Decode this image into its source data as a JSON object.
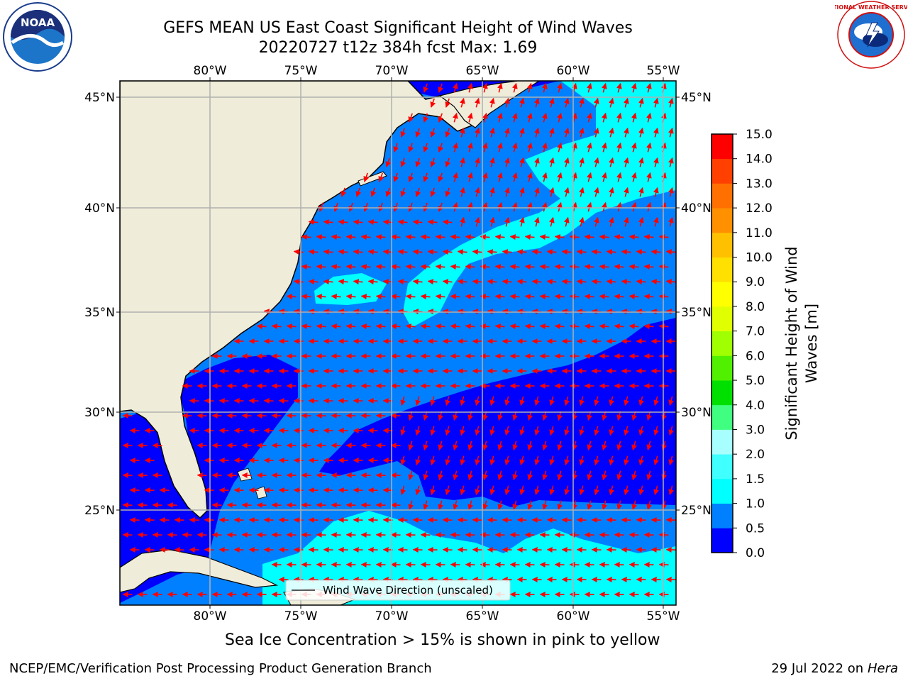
{
  "header": {
    "title_line1": "GEFS MEAN US East Coast Significant Height of Wind Waves",
    "title_line2": "20220727 t12z 384h fcst   Max: 1.69"
  },
  "logos": {
    "left": {
      "name": "noaa-logo",
      "text": "NOAA"
    },
    "right": {
      "name": "national-weather-service-logo",
      "text": "NATIONAL WEATHER SERVICE"
    }
  },
  "map": {
    "lon_labels": [
      "80°W",
      "75°W",
      "70°W",
      "65°W",
      "60°W",
      "55°W"
    ],
    "lat_labels": [
      "45°N",
      "40°N",
      "35°N",
      "30°N",
      "25°N"
    ],
    "legend_text": "Wind Wave Direction (unscaled)",
    "colors": {
      "land": "#efedd9",
      "arrow": "#ff0000",
      "grid": "#b0b0b0"
    }
  },
  "colorbar": {
    "label": "Significant Height of Wind Waves [m]",
    "label_line1": "Significant Height of Wind",
    "label_line2": "Waves [m]",
    "ticks": [
      "15.0",
      "14.0",
      "13.0",
      "12.0",
      "11.0",
      "10.0",
      "9.0",
      "8.0",
      "7.0",
      "6.0",
      "5.0",
      "4.0",
      "3.0",
      "2.0",
      "1.5",
      "1.0",
      "0.5",
      "0.0"
    ],
    "colors": [
      "#0000ff",
      "#0080ff",
      "#00ffff",
      "#40ffff",
      "#a8ffff",
      "#40ff80",
      "#00e000",
      "#50f000",
      "#a0ff00",
      "#e0ff00",
      "#ffff00",
      "#ffe000",
      "#ffc000",
      "#ff9000",
      "#ff7000",
      "#ff4000",
      "#ff0000"
    ]
  },
  "chart_data": {
    "type": "heatmap",
    "title": "GEFS MEAN US East Coast Significant Height of Wind Waves",
    "subtitle": "20220727 t12z 384h fcst   Max: 1.69",
    "variable": "Significant Height of Wind Waves [m]",
    "max_value": 1.69,
    "lon_range": [
      -85,
      -54
    ],
    "lat_range": [
      20.5,
      46
    ],
    "levels": [
      0.0,
      0.5,
      1.0,
      1.5,
      2.0,
      3.0,
      4.0,
      5.0,
      6.0,
      7.0,
      8.0,
      9.0,
      10.0,
      11.0,
      12.0,
      13.0,
      14.0,
      15.0
    ]
  },
  "footer": {
    "sea_ice_note": "Sea Ice Concentration > 15% is shown in pink to yellow",
    "credit": "NCEP/EMC/Verification Post Processing Product Generation Branch",
    "date": "29 Jul 2022 on ",
    "machine": "Hera"
  }
}
